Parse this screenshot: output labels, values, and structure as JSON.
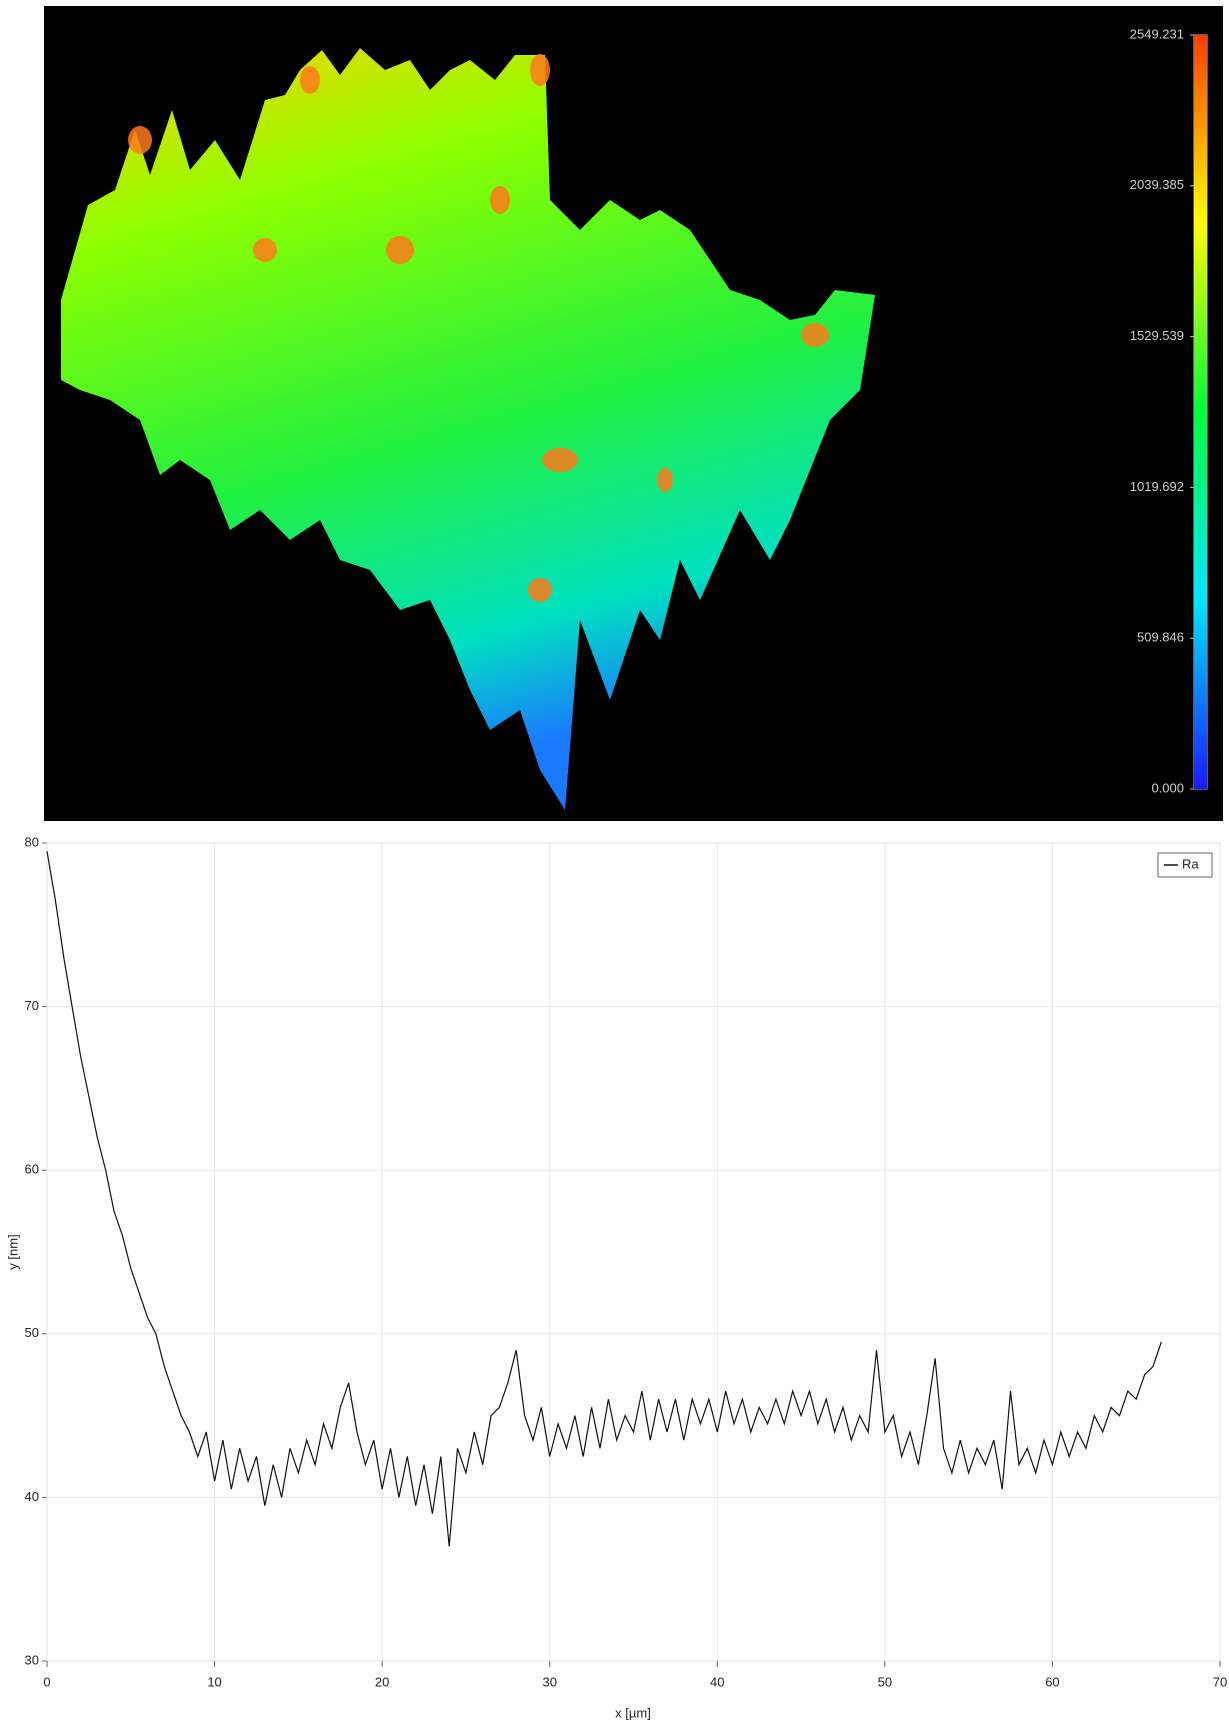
{
  "chart_data": [
    {
      "type": "surface",
      "zlim": [
        0,
        2549.231
      ],
      "zticks": [
        {
          "value": 0,
          "label": "0.000"
        },
        509.846,
        1019.692,
        1529.539,
        2039.385,
        2549.231
      ],
      "colormap": [
        "#1a1aff",
        "#00e5ff",
        "#00ff3c",
        "#ffff00",
        "#ff3c00"
      ]
    },
    {
      "type": "line",
      "x": [
        0,
        0.5,
        1,
        1.5,
        2,
        2.5,
        3,
        3.5,
        4,
        4.5,
        5,
        5.5,
        6,
        6.5,
        7,
        7.5,
        8,
        8.5,
        9,
        9.5,
        10,
        10.5,
        11,
        11.5,
        12,
        12.5,
        13,
        13.5,
        14,
        14.5,
        15,
        15.5,
        16,
        16.5,
        17,
        17.5,
        18,
        18.5,
        19,
        19.5,
        20,
        20.5,
        21,
        21.5,
        22,
        22.5,
        23,
        23.5,
        24,
        24.5,
        25,
        25.5,
        26,
        26.5,
        27,
        27.5,
        28,
        28.5,
        29,
        29.5,
        30,
        30.5,
        31,
        31.5,
        32,
        32.5,
        33,
        33.5,
        34,
        34.5,
        35,
        35.5,
        36,
        36.5,
        37,
        37.5,
        38,
        38.5,
        39,
        39.5,
        40,
        40.5,
        41,
        41.5,
        42,
        42.5,
        43,
        43.5,
        44,
        44.5,
        45,
        45.5,
        46,
        46.5,
        47,
        47.5,
        48,
        48.5,
        49,
        49.5,
        50,
        50.5,
        51,
        51.5,
        52,
        52.5,
        53,
        53.5,
        54,
        54.5,
        55,
        55.5,
        56,
        56.5,
        57,
        57.5,
        58,
        58.5,
        59,
        59.5,
        60,
        60.5,
        61,
        61.5,
        62,
        62.5,
        63,
        63.5,
        64,
        64.5,
        65,
        65.5,
        66,
        66.5
      ],
      "series": [
        {
          "name": "Ra",
          "color": "#111111",
          "values": [
            79.5,
            76.5,
            73,
            70,
            67,
            64.5,
            62,
            60,
            57.5,
            56,
            54,
            52.5,
            51,
            50,
            48,
            46.5,
            45,
            44,
            42.5,
            44,
            41,
            43.5,
            40.5,
            43,
            41,
            42.5,
            39.5,
            42,
            40,
            43,
            41.5,
            43.5,
            42,
            44.5,
            43,
            45.5,
            47,
            44,
            42,
            43.5,
            40.5,
            43,
            40,
            42.5,
            39.5,
            42,
            39,
            42.5,
            37,
            43,
            41.5,
            44,
            42,
            45,
            45.5,
            47,
            49,
            45,
            43.5,
            45.5,
            42.5,
            44.5,
            43,
            45,
            42.5,
            45.5,
            43,
            46,
            43.5,
            45,
            44,
            46.5,
            43.5,
            46,
            44,
            46,
            43.5,
            46,
            44.5,
            46,
            44,
            46.5,
            44.5,
            46,
            44,
            45.5,
            44.5,
            46,
            44.5,
            46.5,
            45,
            46.5,
            44.5,
            46,
            44,
            45.5,
            43.5,
            45,
            44,
            49,
            44,
            45,
            42.5,
            44,
            42,
            45,
            48.5,
            43,
            41.5,
            43.5,
            41.5,
            43,
            42,
            43.5,
            40.5,
            46.5,
            42,
            43,
            41.5,
            43.5,
            42,
            44,
            42.5,
            44,
            43,
            45,
            44,
            45.5,
            45,
            46.5,
            46,
            47.5,
            48,
            49.5
          ]
        }
      ],
      "xlim": [
        0,
        70
      ],
      "xticks": [
        0,
        10,
        20,
        30,
        40,
        50,
        60,
        70
      ],
      "ylim": [
        30,
        80
      ],
      "yticks": [
        30,
        40,
        50,
        60,
        70,
        80
      ],
      "xlabel": "x [µm]",
      "ylabel": "y [nm]",
      "grid": true,
      "legend": "upper right"
    }
  ]
}
